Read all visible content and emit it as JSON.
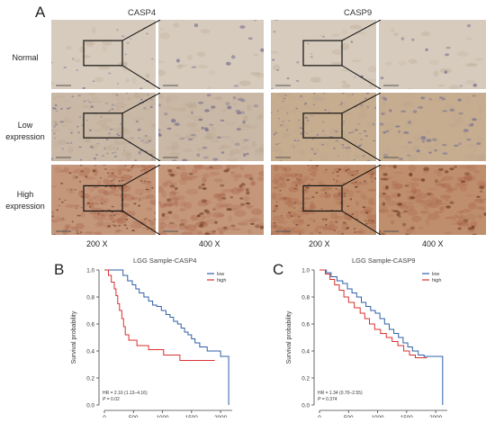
{
  "figure": {
    "panel_labels": {
      "a": "A",
      "b": "B",
      "c": "C"
    },
    "panel_a": {
      "col_titles": [
        "CASP4",
        "CASP9"
      ],
      "row_labels": [
        {
          "line1": "Normal",
          "line2": ""
        },
        {
          "line1": "Low",
          "line2": "expression"
        },
        {
          "line1": "High",
          "line2": "expression"
        }
      ],
      "magnifications": [
        "200 X",
        "400 X",
        "200 X",
        "400 X"
      ],
      "stain_colors": {
        "normal_bg": "#d7cbbd",
        "low_bg": "#c9b8a5",
        "high_bg": "#c4967a",
        "nucleus_blue": "#7b7391",
        "nucleus_brown": "#6e3b24"
      }
    },
    "panel_b": {
      "title": "LGG Sample-CASP4",
      "xlabel": "Time",
      "ylabel": "Survival probability",
      "legend": [
        "low",
        "high"
      ],
      "hr_text": "HR = 2.16 (1.13–4.16)",
      "p_label": "P",
      "p_value": " = 0.02"
    },
    "panel_c": {
      "title": "LGG Sample-CASP9",
      "xlabel": "Time",
      "ylabel": "Survival probability",
      "legend": [
        "low",
        "high"
      ],
      "hr_text": "HR = 1.34 (0.70–2.55)",
      "p_label": "P",
      "p_value": " = 0.374"
    }
  },
  "chart_data": [
    {
      "type": "line",
      "title": "LGG Sample-CASP4",
      "xlabel": "Time",
      "ylabel": "Survival probability",
      "xlim": [
        0,
        2200
      ],
      "ylim": [
        0,
        1.0
      ],
      "xticks": [
        0,
        500,
        1000,
        1500,
        2000
      ],
      "yticks": [
        0.0,
        0.2,
        0.4,
        0.6,
        0.8,
        1.0
      ],
      "legend_position": "top-right",
      "series": [
        {
          "name": "low",
          "color": "#2e5fa8",
          "points": [
            [
              0,
              1.0
            ],
            [
              250,
              1.0
            ],
            [
              320,
              0.96
            ],
            [
              400,
              0.92
            ],
            [
              480,
              0.89
            ],
            [
              540,
              0.86
            ],
            [
              600,
              0.83
            ],
            [
              680,
              0.8
            ],
            [
              760,
              0.77
            ],
            [
              830,
              0.74
            ],
            [
              900,
              0.73
            ],
            [
              980,
              0.7
            ],
            [
              1060,
              0.67
            ],
            [
              1130,
              0.65
            ],
            [
              1190,
              0.62
            ],
            [
              1260,
              0.6
            ],
            [
              1320,
              0.57
            ],
            [
              1380,
              0.54
            ],
            [
              1440,
              0.52
            ],
            [
              1500,
              0.49
            ],
            [
              1560,
              0.46
            ],
            [
              1640,
              0.43
            ],
            [
              1700,
              0.43
            ],
            [
              1770,
              0.4
            ],
            [
              1900,
              0.4
            ],
            [
              2000,
              0.36
            ],
            [
              2120,
              0.36
            ],
            [
              2140,
              0.0
            ]
          ]
        },
        {
          "name": "high",
          "color": "#d8312f",
          "points": [
            [
              0,
              1.0
            ],
            [
              70,
              0.96
            ],
            [
              120,
              0.91
            ],
            [
              170,
              0.86
            ],
            [
              200,
              0.81
            ],
            [
              230,
              0.75
            ],
            [
              260,
              0.7
            ],
            [
              300,
              0.64
            ],
            [
              330,
              0.58
            ],
            [
              360,
              0.52
            ],
            [
              420,
              0.48
            ],
            [
              500,
              0.48
            ],
            [
              560,
              0.44
            ],
            [
              700,
              0.44
            ],
            [
              760,
              0.41
            ],
            [
              950,
              0.41
            ],
            [
              1020,
              0.37
            ],
            [
              1250,
              0.37
            ],
            [
              1300,
              0.33
            ],
            [
              1900,
              0.33
            ]
          ]
        }
      ],
      "annotations": [
        "HR = 2.16 (1.13–4.16)",
        "P = 0.02"
      ]
    },
    {
      "type": "line",
      "title": "LGG Sample-CASP9",
      "xlabel": "Time",
      "ylabel": "Survival probability",
      "xlim": [
        0,
        2200
      ],
      "ylim": [
        0,
        1.0
      ],
      "xticks": [
        0,
        500,
        1000,
        1500,
        2000
      ],
      "yticks": [
        0.0,
        0.2,
        0.4,
        0.6,
        0.8,
        1.0
      ],
      "legend_position": "top-right",
      "series": [
        {
          "name": "low",
          "color": "#2e5fa8",
          "points": [
            [
              0,
              1.0
            ],
            [
              120,
              0.98
            ],
            [
              200,
              0.95
            ],
            [
              300,
              0.92
            ],
            [
              400,
              0.9
            ],
            [
              480,
              0.86
            ],
            [
              560,
              0.83
            ],
            [
              640,
              0.8
            ],
            [
              720,
              0.76
            ],
            [
              800,
              0.73
            ],
            [
              880,
              0.7
            ],
            [
              960,
              0.68
            ],
            [
              1040,
              0.64
            ],
            [
              1120,
              0.6
            ],
            [
              1200,
              0.56
            ],
            [
              1280,
              0.53
            ],
            [
              1360,
              0.5
            ],
            [
              1440,
              0.46
            ],
            [
              1520,
              0.43
            ],
            [
              1600,
              0.4
            ],
            [
              1700,
              0.37
            ],
            [
              1800,
              0.36
            ],
            [
              2100,
              0.36
            ],
            [
              2120,
              0.0
            ]
          ]
        },
        {
          "name": "high",
          "color": "#d8312f",
          "points": [
            [
              0,
              1.0
            ],
            [
              100,
              0.97
            ],
            [
              180,
              0.93
            ],
            [
              260,
              0.89
            ],
            [
              340,
              0.85
            ],
            [
              420,
              0.8
            ],
            [
              500,
              0.76
            ],
            [
              600,
              0.72
            ],
            [
              700,
              0.68
            ],
            [
              780,
              0.64
            ],
            [
              860,
              0.6
            ],
            [
              950,
              0.56
            ],
            [
              1050,
              0.53
            ],
            [
              1150,
              0.5
            ],
            [
              1250,
              0.47
            ],
            [
              1350,
              0.44
            ],
            [
              1450,
              0.4
            ],
            [
              1550,
              0.37
            ],
            [
              1650,
              0.35
            ],
            [
              1800,
              0.35
            ],
            [
              1850,
              0.35
            ]
          ]
        }
      ],
      "annotations": [
        "HR = 1.34 (0.70–2.55)",
        "P = 0.374"
      ]
    }
  ]
}
